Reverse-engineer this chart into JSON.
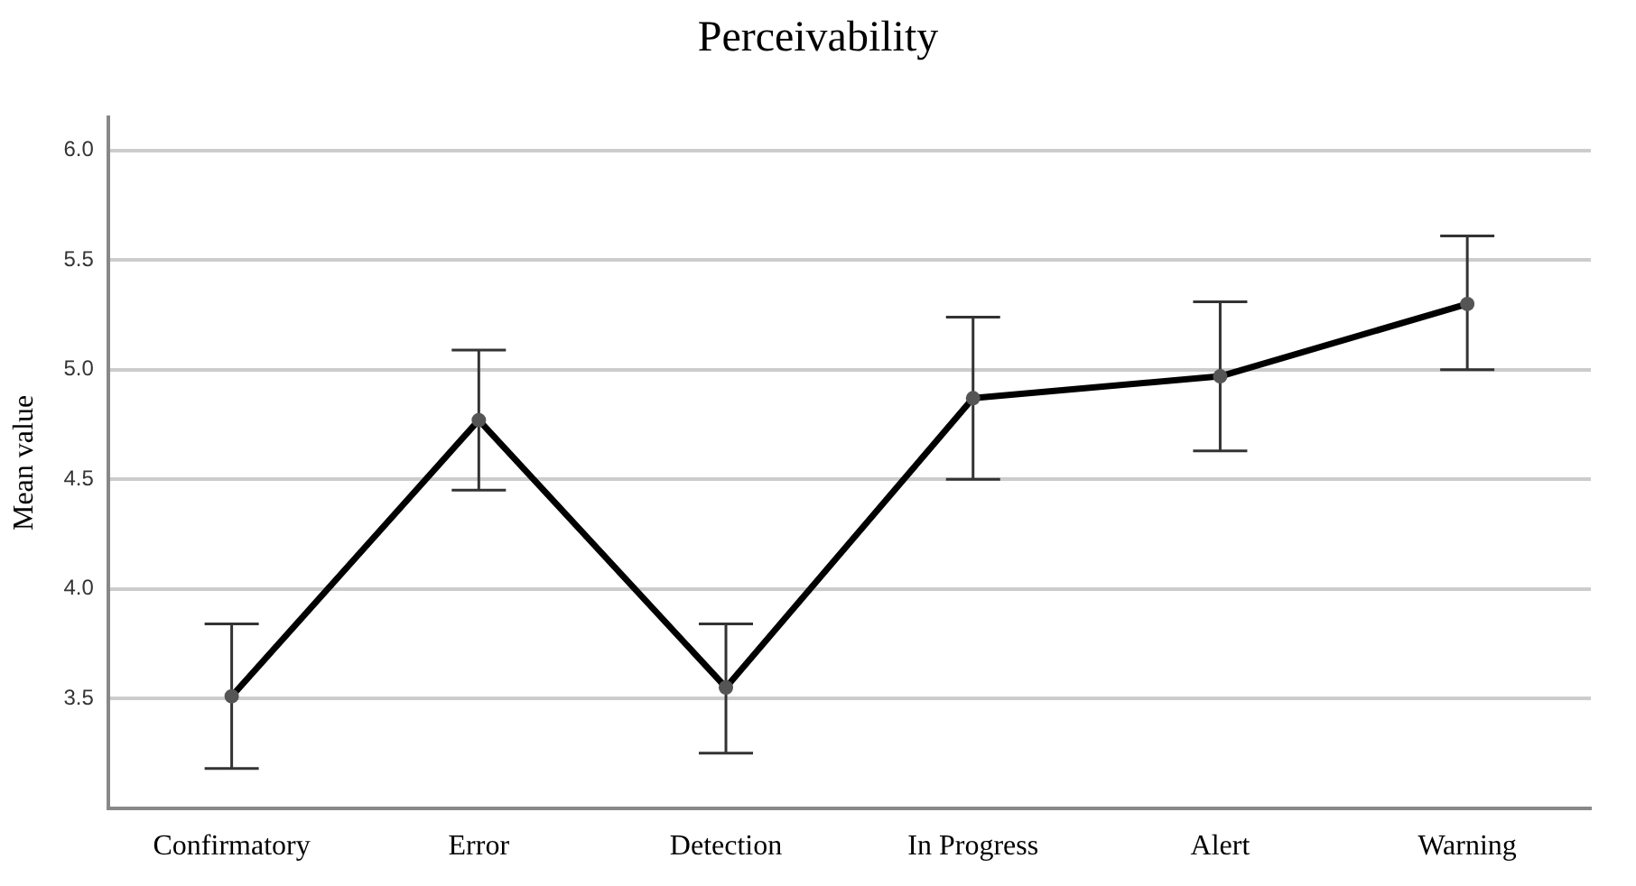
{
  "chart_data": {
    "type": "line",
    "title": "Perceivability",
    "ylabel": "Mean value",
    "categories": [
      "Confirmatory",
      "Error",
      "Detection",
      "In Progress",
      "Alert",
      "Warning"
    ],
    "series": [
      {
        "color": "#000000",
        "values": [
          3.51,
          4.77,
          3.55,
          4.87,
          4.97,
          5.3
        ],
        "errors": [
          [
            3.18,
            3.84
          ],
          [
            4.45,
            5.09
          ],
          [
            3.25,
            3.84
          ],
          [
            4.5,
            5.24
          ],
          [
            4.63,
            5.31
          ],
          [
            5.0,
            5.61
          ]
        ]
      }
    ],
    "ylim": [
      3.0,
      6.15
    ],
    "yticks": [
      {
        "value": 3.5,
        "label": "3.5"
      },
      {
        "value": 4.0,
        "label": "4.0"
      },
      {
        "value": 4.5,
        "label": "4.5"
      },
      {
        "value": 5.0,
        "label": "5.0"
      },
      {
        "value": 5.5,
        "label": "5.5"
      },
      {
        "value": 6.0,
        "label": "6.0"
      }
    ],
    "grid": "y",
    "marker": "circle",
    "line_style": "solid",
    "legend": false
  }
}
